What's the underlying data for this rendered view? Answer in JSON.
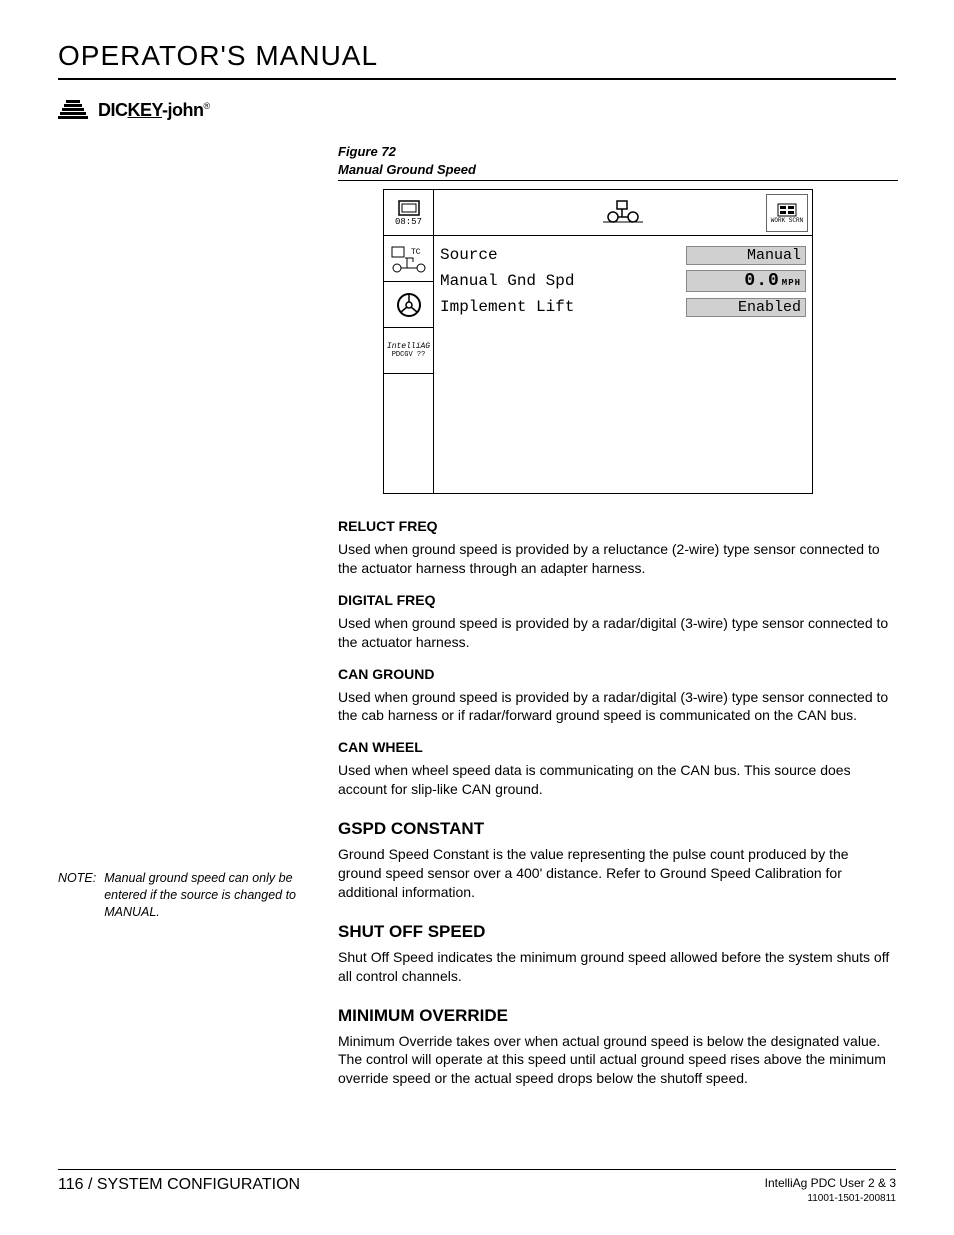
{
  "header": {
    "title": "OPERATOR'S MANUAL"
  },
  "logo": {
    "text_pre": "DIC",
    "text_key": "KEY",
    "text_post": "-john",
    "reg": "®"
  },
  "figure": {
    "label": "Figure 72",
    "subtitle": "Manual Ground Speed",
    "device": {
      "time": "08:57",
      "side_bottom_label": "IntelliAG",
      "side_bottom_sub": "PDCGV ??",
      "work_label": "WORK SCRN",
      "rows": [
        {
          "label": "Source",
          "value": "Manual",
          "type": "text"
        },
        {
          "label": "Manual Gnd Spd",
          "value": "0.0",
          "unit": "MPH",
          "type": "num"
        },
        {
          "label": "Implement Lift",
          "value": "Enabled",
          "type": "text"
        }
      ]
    }
  },
  "sections": [
    {
      "h": "RELUCT FREQ",
      "size": "small",
      "p": "Used when ground speed is provided by a reluctance (2-wire) type sensor connected to the actuator harness through an adapter harness."
    },
    {
      "h": "DIGITAL FREQ",
      "size": "small",
      "p": "Used when ground speed is provided by a radar/digital (3-wire) type sensor connected to the actuator harness."
    },
    {
      "h": "CAN GROUND",
      "size": "small",
      "p": "Used when ground speed is provided by a radar/digital (3-wire) type sensor connected to the cab harness or if radar/forward ground speed is communicated on the CAN bus."
    },
    {
      "h": "CAN WHEEL",
      "size": "small",
      "p": "Used when wheel speed data is communicating on the CAN bus. This source does account for slip-like CAN ground."
    },
    {
      "h": "GSPD CONSTANT",
      "size": "big",
      "p": "Ground Speed Constant is the value representing the pulse count produced by the ground speed sensor over a 400' distance. Refer to Ground Speed Calibration for additional information."
    },
    {
      "h": "SHUT OFF SPEED",
      "size": "big",
      "p": "Shut Off Speed indicates the minimum ground speed allowed before the system shuts off all control channels."
    },
    {
      "h": "MINIMUM OVERRIDE",
      "size": "big",
      "p": "Minimum Override takes over when actual ground speed is below the designated value. The control will operate at this speed until actual ground speed rises above the minimum override speed or the actual speed drops below the shutoff speed."
    }
  ],
  "note": {
    "label": "NOTE:",
    "text": "Manual ground speed can only be entered if the source is changed to MANUAL."
  },
  "footer": {
    "left": "116 / SYSTEM CONFIGURATION",
    "right_top": "IntelliAg PDC User 2 & 3",
    "right_bottom": "11001-1501-200811"
  },
  "colors": {
    "text": "#000000",
    "background": "#ffffff",
    "field_bg": "#d0d0d0",
    "field_border": "#888888"
  }
}
